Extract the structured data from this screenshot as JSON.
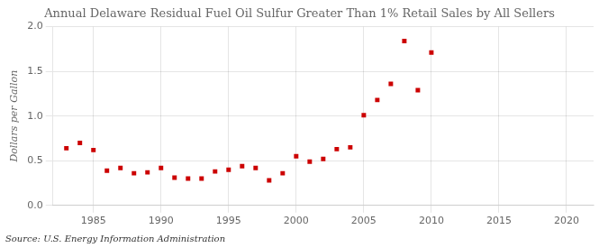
{
  "chart_data": {
    "type": "scatter",
    "title": "Annual Delaware Residual Fuel Oil Sulfur Greater Than 1% Retail Sales by All Sellers",
    "ylabel": "Dollars per Gallon",
    "source": "Source: U.S. Energy Information Administration",
    "x": [
      1983,
      1984,
      1985,
      1986,
      1987,
      1988,
      1989,
      1990,
      1991,
      1992,
      1993,
      1994,
      1995,
      1996,
      1997,
      1998,
      1999,
      2000,
      2001,
      2002,
      2003,
      2004,
      2005,
      2006,
      2007,
      2008,
      2009,
      2010
    ],
    "values": [
      0.64,
      0.7,
      0.62,
      0.39,
      0.42,
      0.36,
      0.37,
      0.42,
      0.31,
      0.3,
      0.3,
      0.38,
      0.4,
      0.44,
      0.42,
      0.28,
      0.36,
      0.55,
      0.49,
      0.52,
      0.63,
      0.65,
      1.01,
      1.18,
      1.36,
      1.84,
      1.29,
      1.71
    ],
    "color": "#cc0000",
    "marker": "square",
    "xlim": [
      1982,
      2022
    ],
    "xticks": [
      1985,
      1990,
      1995,
      2000,
      2005,
      2010,
      2015,
      2020
    ],
    "ylim": [
      0.0,
      2.0
    ],
    "yticks": [
      {
        "value": 0.0,
        "label": "0.0"
      },
      0.5,
      {
        "value": 1.0,
        "label": "1.0"
      },
      1.5,
      {
        "value": 2.0,
        "label": "2.0"
      }
    ],
    "grid": true
  }
}
